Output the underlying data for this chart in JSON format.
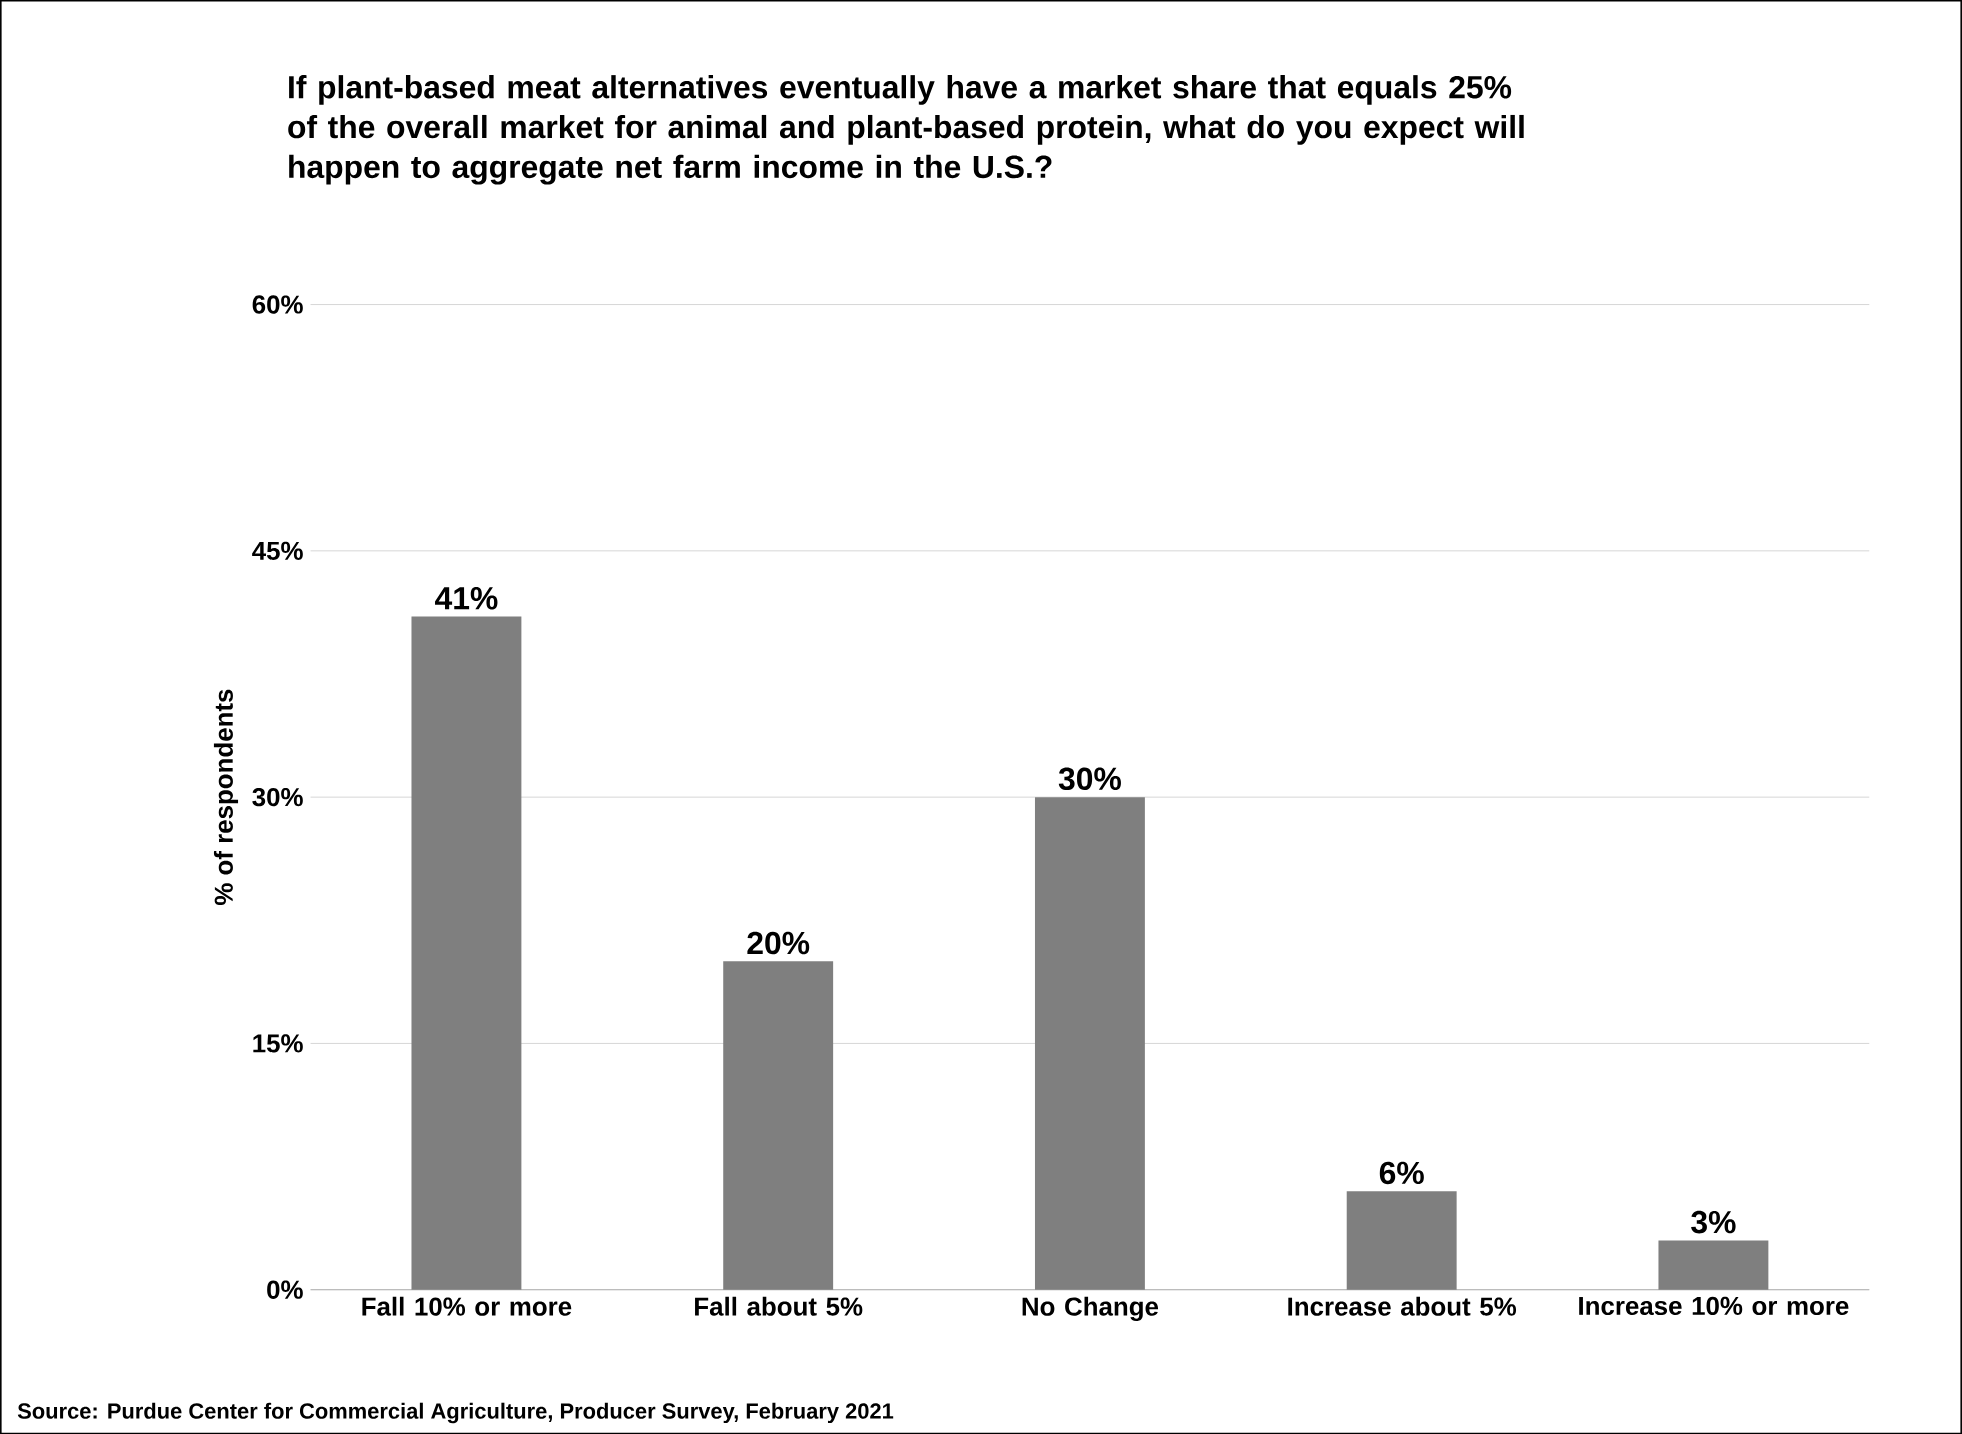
{
  "chart_data": {
    "type": "bar",
    "title": "If plant-based meat alternatives eventually have a market share that equals 25% of the overall market for animal and plant-based protein, what do you expect will happen to aggregate net farm income in the U.S.?",
    "ylabel": "% of respondents",
    "categories": [
      "Fall 10% or more",
      "Fall about 5%",
      "No Change",
      "Increase about 5%",
      "Increase 10% or more"
    ],
    "values": [
      41,
      20,
      30,
      6,
      3
    ],
    "value_labels": [
      "41%",
      "20%",
      "30%",
      "6%",
      "3%"
    ],
    "color": "#7f7f7f",
    "ylim": [
      0,
      60
    ],
    "yticks": [
      {
        "value": 0,
        "label": "0%"
      },
      {
        "value": 15,
        "label": "15%"
      },
      {
        "value": 30,
        "label": "30%"
      },
      {
        "value": 45,
        "label": "45%"
      },
      {
        "value": 60,
        "label": "60%"
      }
    ],
    "grid": "y",
    "annotations": [
      "Source: Purdue Center for Commercial Agriculture, Producer Survey, February 2021"
    ]
  }
}
